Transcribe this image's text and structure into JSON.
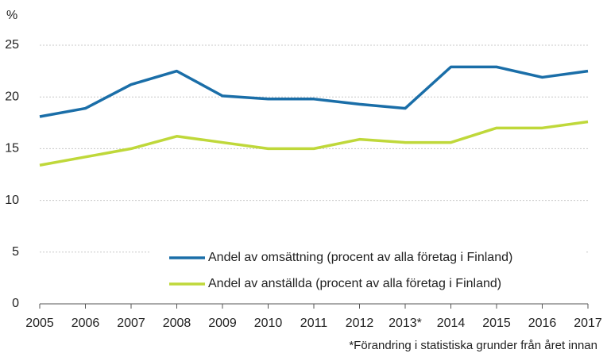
{
  "chart_data": {
    "type": "line",
    "y_label": "%",
    "categories": [
      "2005",
      "2006",
      "2007",
      "2008",
      "2009",
      "2010",
      "2011",
      "2012",
      "2013*",
      "2014",
      "2015",
      "2016",
      "2017"
    ],
    "series": [
      {
        "name": "Andel av omsättning (procent av alla företag i Finland)",
        "color": "#1a6ea8",
        "values": [
          18.1,
          18.9,
          21.2,
          22.5,
          20.1,
          19.8,
          19.8,
          19.3,
          18.9,
          22.9,
          22.9,
          21.9,
          22.5
        ]
      },
      {
        "name": "Andel av anställda (procent av alla företag i Finland)",
        "color": "#bfd83a",
        "values": [
          13.4,
          14.2,
          15.0,
          16.2,
          15.6,
          15.0,
          15.0,
          15.9,
          15.6,
          15.6,
          17.0,
          17.0,
          17.6
        ]
      }
    ],
    "ylim": [
      0,
      25
    ],
    "yticks": [
      0,
      5,
      10,
      15,
      20,
      25
    ],
    "grid": true,
    "legend": "lower right",
    "footnote": "*Förandring i statistiska grunder från året innan"
  }
}
